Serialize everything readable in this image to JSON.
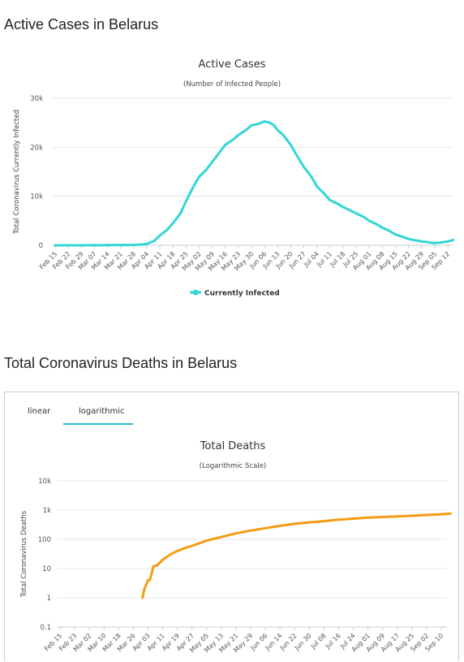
{
  "section1": {
    "title": "Active Cases in Belarus"
  },
  "section2": {
    "title": "Total Coronavirus Deaths in Belarus"
  },
  "tabs": {
    "linear": "linear",
    "logarithmic": "logarithmic",
    "active": "logarithmic"
  },
  "colors": {
    "active_cases": "#33d6d6",
    "deaths": "#f39c12",
    "tab_accent": "#2bbbc8"
  },
  "chart_data": [
    {
      "type": "line",
      "title": "Active Cases",
      "subtitle": "(Number of Infected People)",
      "ylabel": "Total Coronavirus Currently Infected",
      "xlabel": "",
      "ylim": [
        0,
        30000
      ],
      "y_ticks": [
        0,
        10000,
        20000,
        30000
      ],
      "y_tick_labels": [
        "0",
        "10k",
        "20k",
        "30k"
      ],
      "x_tick_labels": [
        "Feb 15",
        "Feb 22",
        "Feb 29",
        "Mar 07",
        "Mar 14",
        "Mar 21",
        "Mar 28",
        "Apr 04",
        "Apr 11",
        "Apr 18",
        "Apr 25",
        "May 02",
        "May 09",
        "May 16",
        "May 23",
        "May 30",
        "Jun 06",
        "Jun 13",
        "Jun 20",
        "Jun 27",
        "Jul 04",
        "Jul 11",
        "Jul 18",
        "Jul 25",
        "Aug 01",
        "Aug 08",
        "Aug 15",
        "Aug 22",
        "Aug 29",
        "Sep 05",
        "Sep 12"
      ],
      "legend": [
        "Currently Infected"
      ],
      "legend_position": "bottom",
      "grid": true,
      "series": [
        {
          "name": "Currently Infected",
          "x": [
            "Feb 15",
            "Feb 22",
            "Feb 29",
            "Mar 07",
            "Mar 14",
            "Mar 21",
            "Mar 28",
            "Apr 01",
            "Apr 04",
            "Apr 08",
            "Apr 11",
            "Apr 15",
            "Apr 18",
            "Apr 22",
            "Apr 25",
            "Apr 29",
            "May 02",
            "May 06",
            "May 09",
            "May 13",
            "May 16",
            "May 20",
            "May 23",
            "May 27",
            "May 30",
            "Jun 03",
            "Jun 06",
            "Jun 09",
            "Jun 11",
            "Jun 13",
            "Jun 16",
            "Jun 20",
            "Jun 23",
            "Jun 27",
            "Jul 01",
            "Jul 04",
            "Jul 08",
            "Jul 11",
            "Jul 15",
            "Jul 18",
            "Jul 22",
            "Jul 25",
            "Jul 29",
            "Aug 01",
            "Aug 05",
            "Aug 08",
            "Aug 12",
            "Aug 15",
            "Aug 19",
            "Aug 22",
            "Aug 26",
            "Aug 29",
            "Sep 02",
            "Sep 05",
            "Sep 09",
            "Sep 12",
            "Sep 15"
          ],
          "values": [
            0,
            0,
            0,
            20,
            30,
            60,
            90,
            150,
            300,
            900,
            2000,
            3200,
            4500,
            6500,
            9000,
            12000,
            14000,
            15500,
            17000,
            19000,
            20500,
            21500,
            22500,
            23500,
            24500,
            24800,
            25300,
            25000,
            24500,
            23500,
            22500,
            20500,
            18500,
            16000,
            14000,
            12000,
            10500,
            9200,
            8500,
            7800,
            7100,
            6500,
            5800,
            5000,
            4300,
            3600,
            2900,
            2200,
            1700,
            1300,
            1000,
            800,
            600,
            450,
            600,
            800,
            1100
          ]
        }
      ]
    },
    {
      "type": "line",
      "title": "Total Deaths",
      "subtitle": "(Logarithmic Scale)",
      "ylabel": "Total Coronavirus Deaths",
      "xlabel": "",
      "yscale": "log",
      "ylim": [
        0.1,
        10000
      ],
      "y_ticks": [
        0.1,
        1,
        10,
        100,
        1000,
        10000
      ],
      "y_tick_labels": [
        "0.1",
        "1",
        "10",
        "100",
        "1k",
        "10k"
      ],
      "x_tick_labels": [
        "Feb 15",
        "Feb 23",
        "Mar 02",
        "Mar 10",
        "Mar 18",
        "Mar 26",
        "Apr 03",
        "Apr 11",
        "Apr 19",
        "Apr 27",
        "May 05",
        "May 13",
        "May 21",
        "May 29",
        "Jun 06",
        "Jun 14",
        "Jun 22",
        "Jun 30",
        "Jul 08",
        "Jul 16",
        "Jul 24",
        "Aug 01",
        "Aug 09",
        "Aug 17",
        "Aug 25",
        "Sep 02",
        "Sep 10"
      ],
      "grid": true,
      "series": [
        {
          "name": "Total Deaths",
          "x": [
            "Mar 31",
            "Apr 01",
            "Apr 03",
            "Apr 04",
            "Apr 06",
            "Apr 08",
            "Apr 11",
            "Apr 15",
            "Apr 19",
            "Apr 23",
            "Apr 27",
            "May 05",
            "May 13",
            "May 21",
            "May 29",
            "Jun 06",
            "Jun 14",
            "Jun 22",
            "Jun 30",
            "Jul 08",
            "Jul 16",
            "Jul 24",
            "Aug 01",
            "Aug 09",
            "Aug 17",
            "Aug 25",
            "Sep 02",
            "Sep 10",
            "Sep 15"
          ],
          "values": [
            1,
            2,
            4,
            4,
            12,
            13,
            20,
            30,
            40,
            50,
            60,
            90,
            120,
            160,
            200,
            240,
            290,
            340,
            380,
            420,
            470,
            510,
            550,
            580,
            610,
            640,
            680,
            720,
            760
          ]
        }
      ]
    }
  ]
}
